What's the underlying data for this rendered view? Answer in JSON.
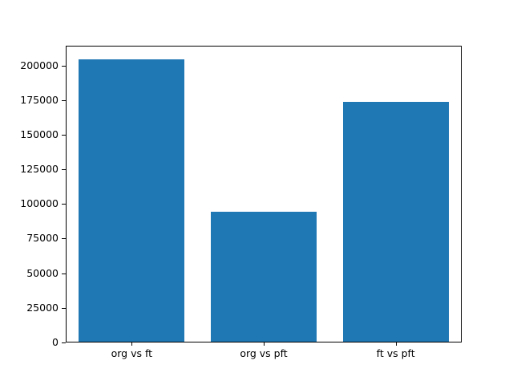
{
  "chart_data": {
    "type": "bar",
    "categories": [
      "org vs ft",
      "org vs pft",
      "ft vs pft"
    ],
    "values": [
      204000,
      94000,
      173000
    ],
    "title": "",
    "xlabel": "",
    "ylabel": "",
    "ylim": [
      0,
      214200
    ],
    "yticks": [
      0,
      25000,
      50000,
      75000,
      100000,
      125000,
      150000,
      175000,
      200000
    ],
    "bar_color": "#1f77b4",
    "bar_width_fraction": 0.8,
    "grid": false,
    "legend": false
  },
  "figure": {
    "background": "#ffffff",
    "spine_color": "#000000",
    "text_color": "#000000"
  }
}
